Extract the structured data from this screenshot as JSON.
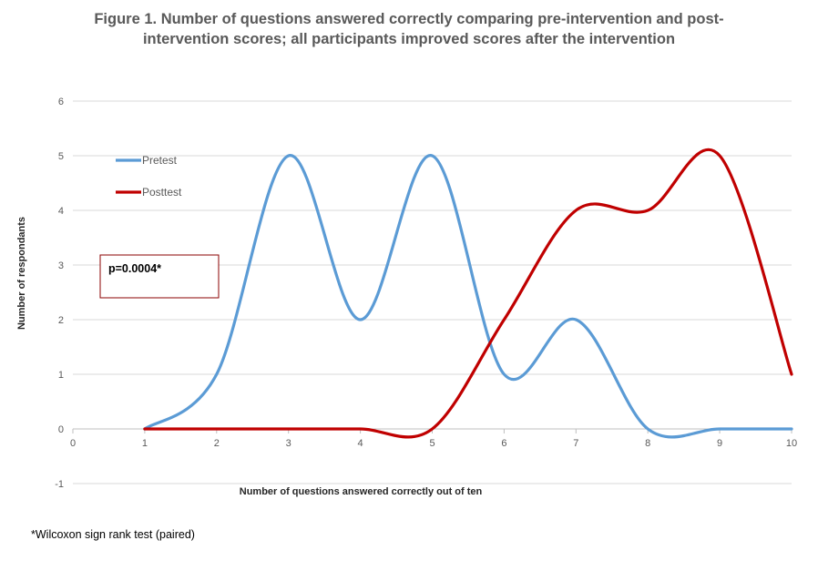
{
  "title_line1": "Figure 1. Number of questions answered correctly comparing pre-intervention and post-",
  "title_line2": "intervention scores; all participants improved scores after the intervention",
  "footnote": "*Wilcoxon sign rank test (paired)",
  "chart_data": {
    "type": "line",
    "smooth": true,
    "xlabel": "Number of questions answered correctly out of ten",
    "ylabel": "Number of respondants",
    "xlim": [
      0,
      10
    ],
    "ylim": [
      -1,
      6
    ],
    "x_ticks": [
      0,
      1,
      2,
      3,
      4,
      5,
      6,
      7,
      8,
      9,
      10
    ],
    "y_ticks": [
      -1,
      0,
      1,
      2,
      3,
      4,
      5,
      6
    ],
    "grid": "horizontal",
    "legend_position": "upper-left",
    "annotation": "p=0.0004*",
    "series": [
      {
        "name": "Pretest",
        "color": "#5B9BD5",
        "x": [
          1,
          2,
          3,
          4,
          5,
          6,
          7,
          8,
          9,
          10
        ],
        "values": [
          0,
          1,
          5,
          2,
          5,
          1,
          2,
          0,
          0,
          0
        ]
      },
      {
        "name": "Posttest",
        "color": "#C00000",
        "x": [
          1,
          2,
          3,
          4,
          5,
          6,
          7,
          8,
          9,
          10
        ],
        "values": [
          0,
          0,
          0,
          0,
          0,
          2,
          4,
          4,
          5,
          1
        ]
      }
    ]
  }
}
